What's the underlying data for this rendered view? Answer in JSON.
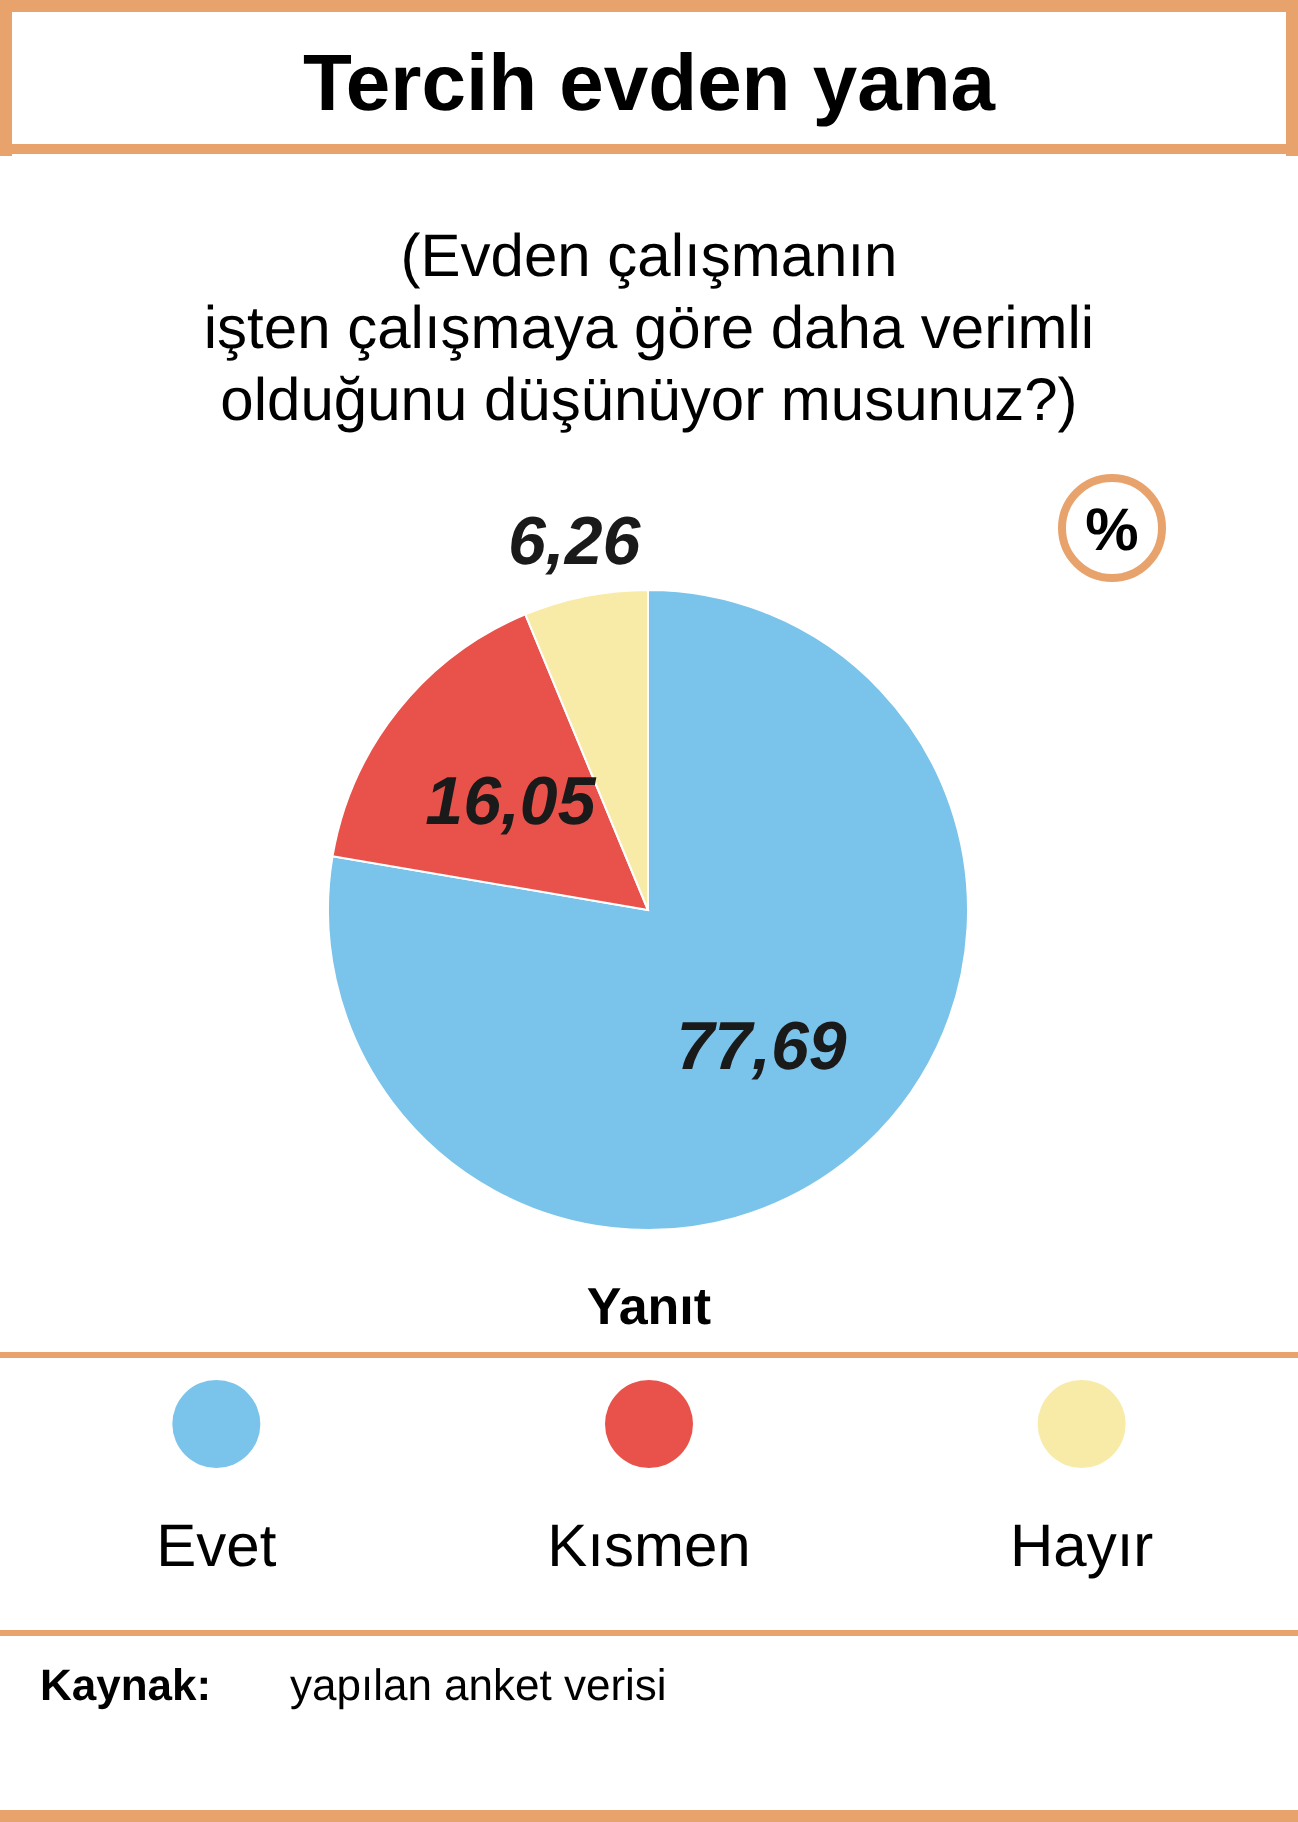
{
  "chart_data": {
    "type": "pie",
    "title": "Tercih evden yana",
    "subtitle": "(Evden çalışmanın\nişten çalışmaya göre daha verimli\nolduğunu düşünüyor musunuz?)",
    "legend_title": "Yanıt",
    "categories": [
      "Evet",
      "Kısmen",
      "Hayır"
    ],
    "values": [
      77.69,
      16.05,
      6.26
    ],
    "value_labels": [
      "77,69",
      "16,05",
      "6,26"
    ],
    "colors": [
      "#7ac3ea",
      "#e8524a",
      "#f8eba8"
    ],
    "legend": "bottom",
    "annotations": [
      "%",
      "Kaynak:",
      "yapılan anket verisi"
    ]
  }
}
